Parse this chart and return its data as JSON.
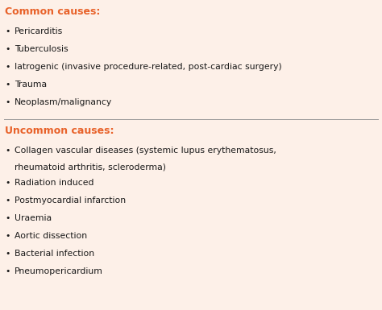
{
  "bg_color": "#fdf0e8",
  "header_color": "#e8622a",
  "text_color": "#1a1a1a",
  "divider_color": "#999999",
  "common_header": "Common causes:",
  "uncommon_header": "Uncommon causes:",
  "common_items": [
    "Pericarditis",
    "Tuberculosis",
    "Iatrogenic (invasive procedure-related, post-cardiac surgery)",
    "Trauma",
    "Neoplasm/malignancy"
  ],
  "uncommon_item_line1": "Collagen vascular diseases (systemic lupus erythematosus,",
  "uncommon_item_line2": "rheumatoid arthritis, scleroderma)",
  "uncommon_items_rest": [
    "Radiation induced",
    "Postmyocardial infarction",
    "Uraemia",
    "Aortic dissection",
    "Bacterial infection",
    "Pneumopericardium"
  ],
  "bullet": "•",
  "font_size_header": 9.0,
  "font_size_body": 7.8
}
